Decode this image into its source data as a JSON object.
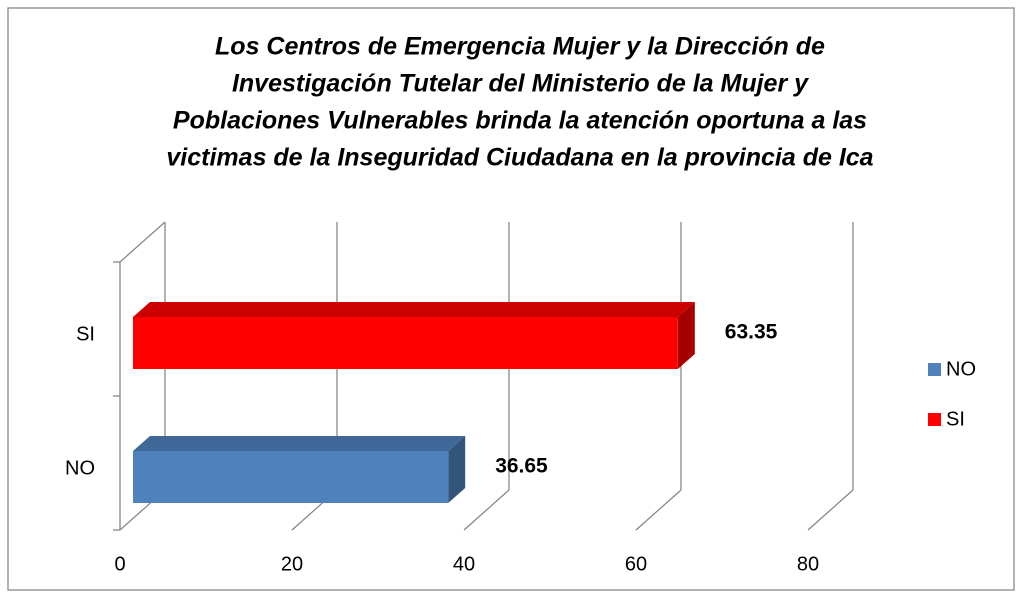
{
  "chart_data": {
    "type": "bar3d_horizontal",
    "title": [
      "Los Centros de Emergencia Mujer y la Dirección de",
      "Investigación Tutelar del Ministerio de la Mujer y",
      "Poblaciones Vulnerables brinda la atención oportuna a las",
      "victimas de la Inseguridad Ciudadana en la provincia de Ica"
    ],
    "categories": [
      "NO",
      "SI"
    ],
    "values": [
      36.65,
      63.35
    ],
    "colors": [
      "#4f81bd",
      "#ff0000"
    ],
    "xlim": [
      0,
      80
    ],
    "xticks": [
      0,
      20,
      40,
      60,
      80
    ],
    "grid": true,
    "legend": "right"
  }
}
